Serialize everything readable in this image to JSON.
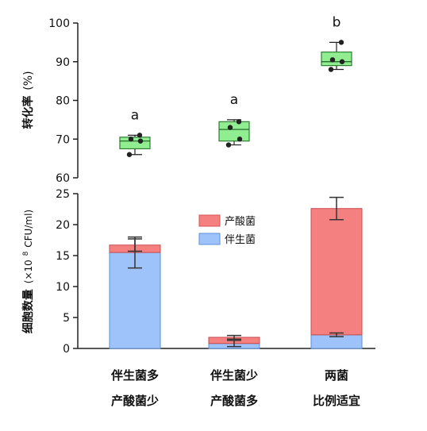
{
  "chart_data": [
    {
      "type": "box",
      "ylabel_main": "转化率",
      "ylabel_unit": "(%)",
      "ylim": [
        60,
        100
      ],
      "yticks": [
        60,
        70,
        80,
        90,
        100
      ],
      "box_color": "#90ee90",
      "groups": [
        {
          "letter": "a",
          "min": 66,
          "q1": 67.5,
          "median": 69.5,
          "q3": 70.5,
          "max": 71,
          "points": [
            66,
            69.5,
            70,
            71
          ]
        },
        {
          "letter": "a",
          "min": 68.5,
          "q1": 69.5,
          "median": 72.5,
          "q3": 74.5,
          "max": 75,
          "points": [
            68.5,
            70,
            73,
            74.5
          ]
        },
        {
          "letter": "b",
          "min": 88,
          "q1": 89,
          "median": 90,
          "q3": 92.5,
          "max": 95,
          "points": [
            88,
            90,
            90.5,
            95
          ]
        }
      ]
    },
    {
      "type": "stacked-bar",
      "ylabel_main": "细胞数量",
      "ylabel_unit_pre": "(×10",
      "ylabel_unit_sup": "8",
      "ylabel_unit_post": "CFU/ml)",
      "ylim": [
        0,
        25
      ],
      "yticks": [
        0,
        5,
        10,
        15,
        20,
        25
      ],
      "legend_position": "top-center",
      "categories": [
        {
          "line1": "伴生菌多",
          "line2": "产酸菌少"
        },
        {
          "line1": "伴生菌少",
          "line2": "产酸菌多"
        },
        {
          "line1": "两菌",
          "line2": "比例适宜"
        }
      ],
      "series": [
        {
          "name": "伴生菌",
          "color": "#9ec3fa",
          "values": [
            15.5,
            0.8,
            2.2
          ],
          "errors": [
            2.5,
            0.5,
            0.3
          ]
        },
        {
          "name": "产酸菌",
          "color": "#f58080",
          "values": [
            1.2,
            1.0,
            20.4
          ],
          "errors": [
            1.0,
            0.3,
            1.8
          ]
        }
      ]
    }
  ]
}
